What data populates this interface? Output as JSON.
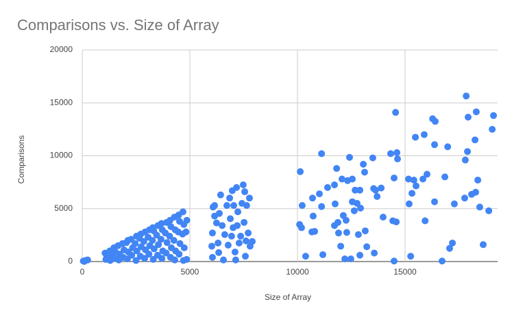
{
  "chart_data": {
    "type": "scatter",
    "title": "Comparisons vs. Size of Array",
    "x_label": "Size of Array",
    "y_label": "Comparisons",
    "color": "#4285f4",
    "grid": true,
    "xlim": [
      0,
      19300
    ],
    "ylim": [
      0,
      20000
    ],
    "xticks": [
      0,
      5000,
      10000,
      15000
    ],
    "yticks": [
      0,
      5000,
      10000,
      15000,
      20000
    ],
    "x": [
      50,
      150,
      250,
      100,
      1100,
      1140,
      1060,
      1300,
      1340,
      1280,
      1500,
      1540,
      1470,
      1700,
      1740,
      1660,
      1900,
      1940,
      1870,
      2100,
      2140,
      2060,
      2120,
      2300,
      2340,
      2270,
      2500,
      2540,
      2460,
      2520,
      2700,
      2740,
      2660,
      2720,
      2900,
      2940,
      2860,
      2920,
      3100,
      3140,
      3060,
      3120,
      3300,
      3340,
      3260,
      3320,
      3280,
      3500,
      3540,
      3460,
      3520,
      3700,
      3740,
      3660,
      3720,
      3680,
      3900,
      3940,
      3860,
      3920,
      4100,
      4140,
      4060,
      4120,
      4080,
      4300,
      4340,
      4260,
      4320,
      4280,
      4500,
      4540,
      4460,
      4520,
      4480,
      4700,
      4740,
      4660,
      4720,
      4680,
      4850,
      4820,
      4860,
      6080,
      6150,
      6050,
      6020,
      6050,
      6150,
      6240,
      6310,
      6340,
      6430,
      6500,
      6560,
      6720,
      6780,
      6850,
      6880,
      6940,
      6970,
      7040,
      7100,
      7170,
      7200,
      7130,
      7230,
      7290,
      7420,
      7480,
      7520,
      7550,
      7580,
      7640,
      7710,
      7770,
      7800,
      7900,
      7610,
      7360,
      6620,
      6370,
      7010,
      10130,
      10220,
      10100,
      10190,
      10380,
      10670,
      10800,
      10730,
      10700,
      11020,
      11120,
      11120,
      11180,
      11400,
      11720,
      11820,
      11750,
      11720,
      11880,
      11910,
      12010,
      12070,
      12130,
      12260,
      12330,
      12290,
      12420,
      12200,
      12480,
      12550,
      12550,
      12640,
      12680,
      12770,
      12830,
      12900,
      12930,
      12900,
      13060,
      13120,
      13150,
      13220,
      13500,
      13540,
      13630,
      13570,
      13700,
      13890,
      13980,
      14330,
      14430,
      14560,
      14590,
      14620,
      14650,
      14490,
      14490,
      15160,
      15190,
      15260,
      15320,
      15410,
      15480,
      15510,
      15830,
      15890,
      15930,
      16020,
      16280,
      16400,
      16370,
      16370,
      16720,
      16850,
      16980,
      17070,
      17200,
      17290,
      17840,
      17930,
      17800,
      17770,
      17900,
      18090,
      18280,
      18250,
      18310,
      18380,
      18470,
      18630,
      18890,
      19050,
      19110
    ],
    "values": [
      50,
      100,
      150,
      20,
      200,
      500,
      800,
      100,
      600,
      1000,
      300,
      900,
      1300,
      150,
      700,
      1500,
      400,
      1100,
      1700,
      250,
      900,
      1800,
      2000,
      600,
      1300,
      2100,
      100,
      1000,
      1700,
      2400,
      500,
      1400,
      2200,
      2600,
      300,
      1100,
      1900,
      2800,
      700,
      1500,
      2300,
      3000,
      200,
      1200,
      2000,
      2900,
      3200,
      600,
      1600,
      2500,
      3400,
      300,
      1000,
      2100,
      3000,
      3600,
      800,
      1800,
      2700,
      3700,
      400,
      1300,
      2400,
      3300,
      3900,
      150,
      1000,
      2000,
      3000,
      4200,
      700,
      1700,
      2800,
      3800,
      4400,
      100,
      1300,
      2600,
      3500,
      4700,
      200,
      2800,
      3900,
      5150,
      5300,
      2700,
      1450,
      400,
      4300,
      3650,
      1750,
      850,
      6300,
      3400,
      150,
      5300,
      1550,
      6000,
      4050,
      2400,
      6700,
      5300,
      900,
      7000,
      3400,
      150,
      4700,
      1750,
      5500,
      7250,
      3700,
      6600,
      500,
      5300,
      2700,
      6000,
      1450,
      1900,
      1950,
      2400,
      2550,
      4550,
      3200,
      8500,
      5300,
      3500,
      3200,
      500,
      2800,
      2850,
      4300,
      6000,
      6400,
      10200,
      5200,
      650,
      7000,
      7250,
      8800,
      5450,
      3400,
      3700,
      2700,
      1450,
      7800,
      4350,
      3900,
      7650,
      2750,
      9850,
      250,
      250,
      7800,
      5650,
      4800,
      6750,
      5500,
      2550,
      6750,
      5050,
      600,
      9200,
      8450,
      2900,
      1400,
      9800,
      6900,
      6750,
      800,
      6150,
      6950,
      4200,
      10200,
      3850,
      14100,
      3750,
      10300,
      9700,
      7900,
      50,
      7800,
      5450,
      500,
      6450,
      7700,
      11750,
      7150,
      7800,
      12000,
      3850,
      8250,
      13500,
      13250,
      11050,
      5650,
      50,
      8000,
      10850,
      1250,
      1750,
      5450,
      15650,
      13650,
      9600,
      6000,
      10400,
      6350,
      6550,
      11500,
      14150,
      7700,
      5150,
      1600,
      4800,
      12500,
      13800
    ]
  }
}
